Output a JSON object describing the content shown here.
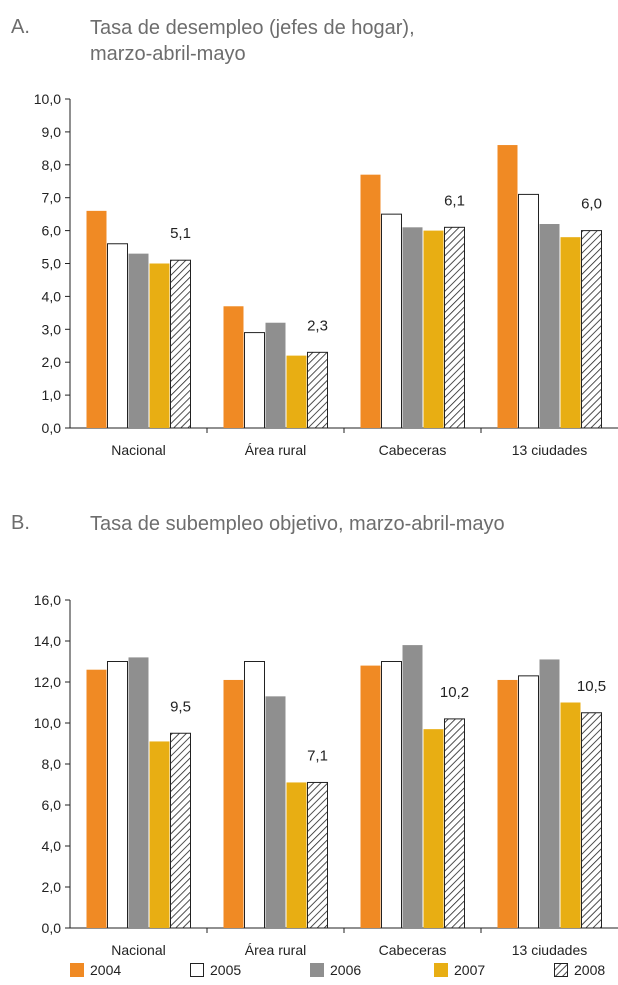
{
  "panels": [
    {
      "letter": "A.",
      "title_line1": "Tasa de desempleo (jefes de hogar),",
      "title_line2": "marzo-abril-mayo"
    },
    {
      "letter": "B.",
      "title_line1": "Tasa de subempleo objetivo, marzo-abril-mayo",
      "title_line2": ""
    }
  ],
  "colors": {
    "2004": "#f08a24",
    "2005": "#ffffff",
    "2006": "#8f8f8f",
    "2007": "#e8ae13",
    "2008": "hatch"
  },
  "chart_data": [
    {
      "type": "bar",
      "title": "Tasa de desempleo (jefes de hogar), marzo-abril-mayo",
      "categories": [
        "Nacional",
        "Área rural",
        "Cabeceras",
        "13 ciudades"
      ],
      "ylim": [
        0,
        10
      ],
      "yticks": [
        "0,0",
        "1,0",
        "2,0",
        "3,0",
        "4,0",
        "5,0",
        "6,0",
        "7,0",
        "8,0",
        "9,0",
        "10,0"
      ],
      "series": [
        {
          "name": "2004",
          "values": [
            6.6,
            3.7,
            7.7,
            8.6
          ]
        },
        {
          "name": "2005",
          "values": [
            5.6,
            2.9,
            6.5,
            7.1
          ]
        },
        {
          "name": "2006",
          "values": [
            5.3,
            3.2,
            6.1,
            6.2
          ]
        },
        {
          "name": "2007",
          "values": [
            5.0,
            2.2,
            6.0,
            5.8
          ]
        },
        {
          "name": "2008",
          "values": [
            5.1,
            2.3,
            6.1,
            6.0
          ]
        }
      ],
      "data_labels": [
        "5,1",
        "2,3",
        "6,1",
        "6,0"
      ]
    },
    {
      "type": "bar",
      "title": "Tasa de subempleo objetivo, marzo-abril-mayo",
      "categories": [
        "Nacional",
        "Área rural",
        "Cabeceras",
        "13 ciudades"
      ],
      "ylim": [
        0,
        16
      ],
      "yticks": [
        "0,0",
        "2,0",
        "4,0",
        "6,0",
        "8,0",
        "10,0",
        "12,0",
        "14,0",
        "16,0"
      ],
      "series": [
        {
          "name": "2004",
          "values": [
            12.6,
            12.1,
            12.8,
            12.1
          ]
        },
        {
          "name": "2005",
          "values": [
            13.0,
            13.0,
            13.0,
            12.3
          ]
        },
        {
          "name": "2006",
          "values": [
            13.2,
            11.3,
            13.8,
            13.1
          ]
        },
        {
          "name": "2007",
          "values": [
            9.1,
            7.1,
            9.7,
            11.0
          ]
        },
        {
          "name": "2008",
          "values": [
            9.5,
            7.1,
            10.2,
            10.5
          ]
        }
      ],
      "data_labels": [
        "9,5",
        "7,1",
        "10,2",
        "10,5"
      ]
    }
  ],
  "legend": [
    "2004",
    "2005",
    "2006",
    "2007",
    "2008"
  ]
}
